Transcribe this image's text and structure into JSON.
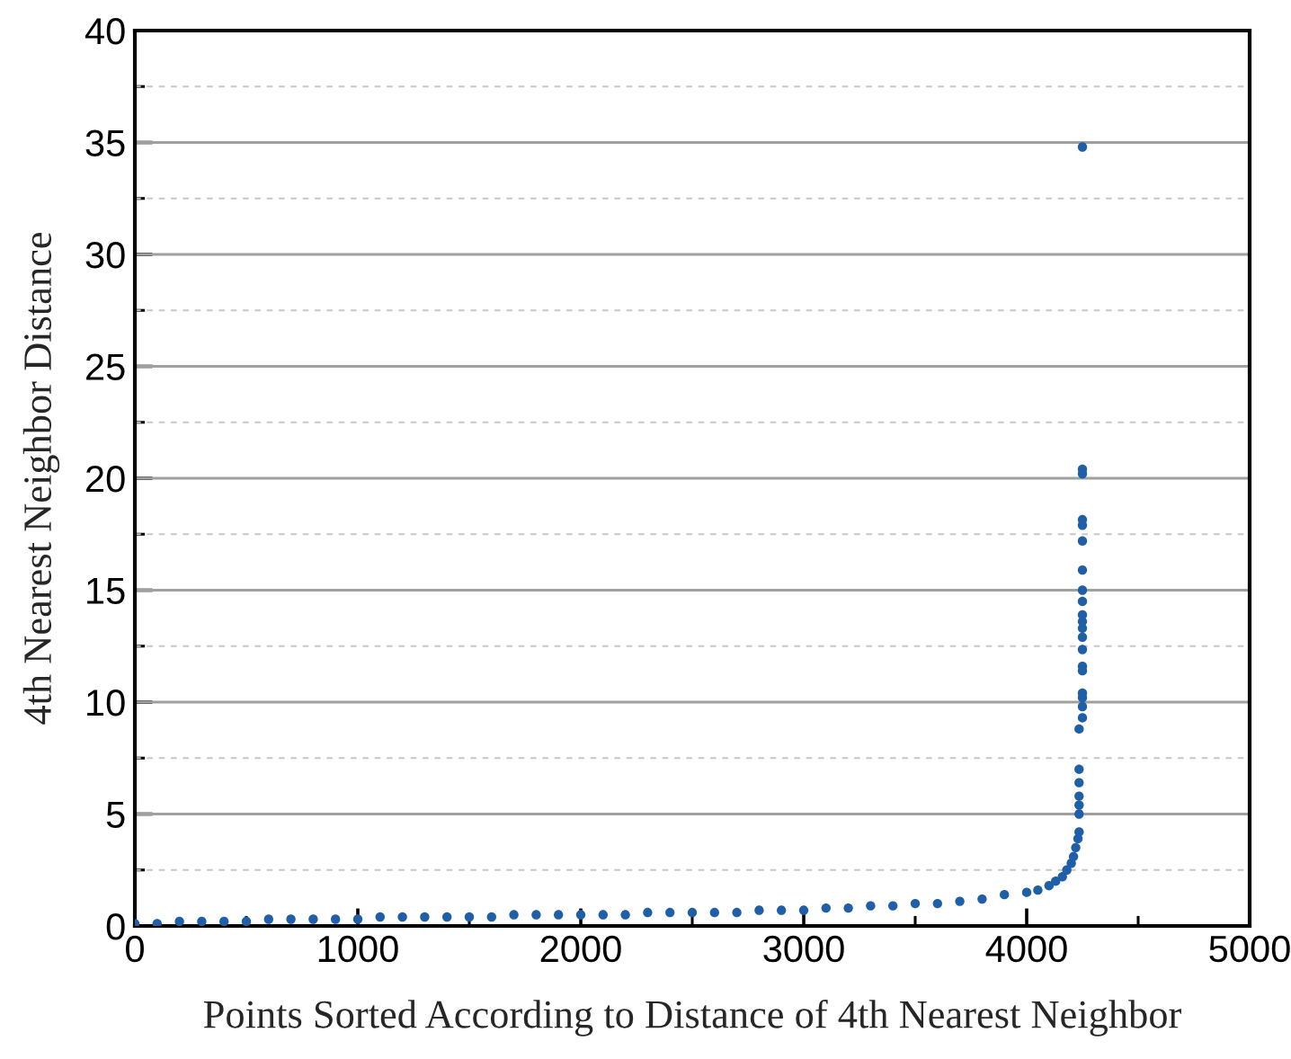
{
  "chart_data": {
    "type": "scatter",
    "xlabel": "Points Sorted According to Distance of 4th Nearest Neighbor",
    "ylabel": "4th Nearest Neighbor Distance",
    "series": [
      {
        "color": "#1f5fa8",
        "x": [
          0,
          100,
          200,
          300,
          400,
          500,
          600,
          700,
          800,
          900,
          1000,
          1100,
          1200,
          1300,
          1400,
          1500,
          1600,
          1700,
          1800,
          1900,
          2000,
          2100,
          2200,
          2300,
          2400,
          2500,
          2600,
          2700,
          2800,
          2900,
          3000,
          3100,
          3200,
          3300,
          3400,
          3500,
          3600,
          3700,
          3800,
          3900,
          4000,
          4050,
          4100,
          4130,
          4160,
          4180,
          4200,
          4210,
          4220,
          4230,
          4235,
          4235,
          4235,
          4235,
          4235,
          4235,
          4235,
          4250,
          4250,
          4250,
          4250,
          4250,
          4250,
          4250,
          4250,
          4250,
          4250,
          4250,
          4250,
          4250,
          4250,
          4250,
          4250,
          4250,
          4250,
          4250,
          4250
        ],
        "values": [
          0.1,
          0.1,
          0.2,
          0.2,
          0.2,
          0.2,
          0.3,
          0.3,
          0.3,
          0.3,
          0.3,
          0.4,
          0.4,
          0.4,
          0.4,
          0.4,
          0.4,
          0.5,
          0.5,
          0.5,
          0.5,
          0.5,
          0.5,
          0.6,
          0.6,
          0.6,
          0.6,
          0.6,
          0.7,
          0.7,
          0.7,
          0.8,
          0.8,
          0.9,
          0.9,
          1.0,
          1.0,
          1.1,
          1.2,
          1.4,
          1.5,
          1.6,
          1.8,
          2.0,
          2.2,
          2.5,
          2.8,
          3.1,
          3.5,
          3.9,
          4.2,
          5.0,
          5.4,
          5.8,
          6.4,
          7.0,
          8.8,
          9.3,
          9.8,
          10.2,
          10.4,
          11.4,
          11.6,
          12.35,
          12.9,
          13.3,
          13.6,
          13.9,
          14.5,
          15.0,
          15.9,
          17.2,
          17.9,
          18.15,
          20.2,
          20.4,
          34.8
        ]
      }
    ],
    "xlim": [
      0,
      5000
    ],
    "ylim": [
      0,
      40
    ],
    "xticks": [
      0,
      {
        "value": 500,
        "label": null
      },
      1000,
      {
        "value": 1500,
        "label": null
      },
      2000,
      {
        "value": 2500,
        "label": null
      },
      3000,
      {
        "value": 3500,
        "label": null
      },
      4000,
      {
        "value": 4500,
        "label": null
      },
      5000
    ],
    "yticks": [
      0,
      {
        "value": 2.5,
        "label": null
      },
      5,
      {
        "value": 7.5,
        "label": null
      },
      10,
      {
        "value": 12.5,
        "label": null
      },
      15,
      {
        "value": 17.5,
        "label": null
      },
      20,
      {
        "value": 22.5,
        "label": null
      },
      25,
      {
        "value": 27.5,
        "label": null
      },
      30,
      {
        "value": 32.5,
        "label": null
      },
      35,
      {
        "value": 37.5,
        "label": null
      },
      40
    ],
    "grid": "y",
    "marker": "circle"
  }
}
